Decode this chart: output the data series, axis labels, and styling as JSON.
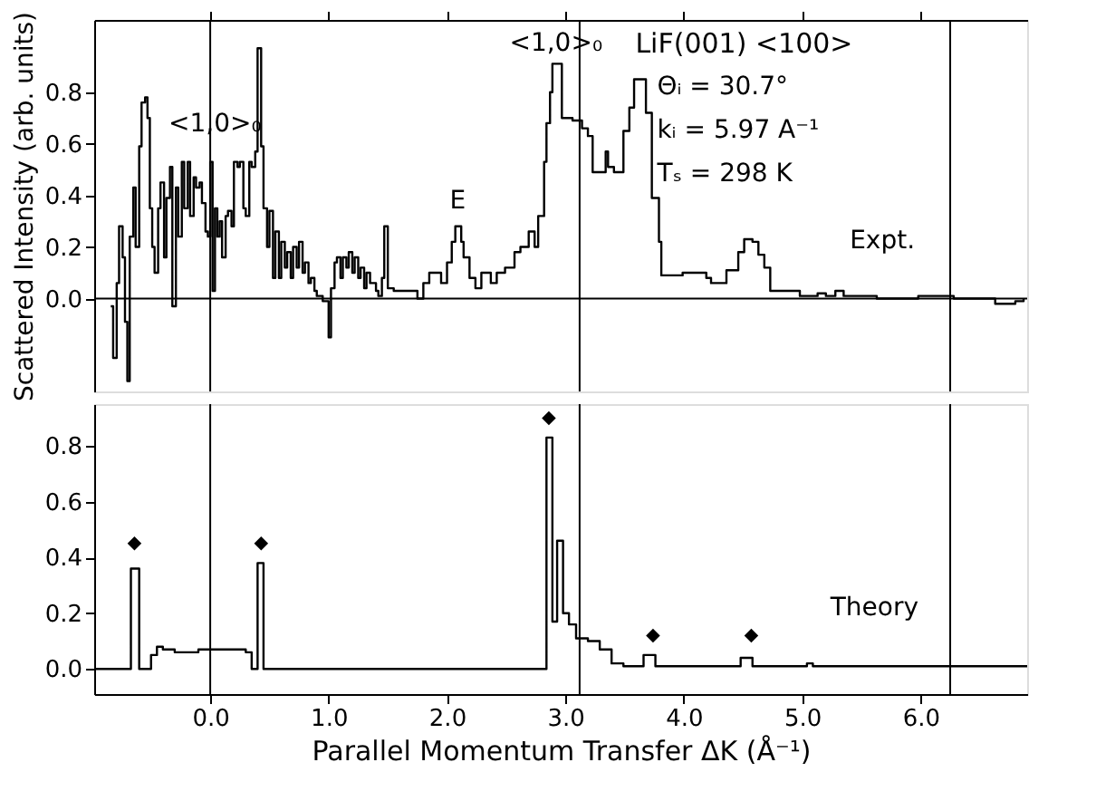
{
  "chart_data": [
    {
      "type": "step",
      "ylabel": "Scattered Intensity (arb. units)",
      "xlim": [
        -0.98,
        6.9
      ],
      "ylim": [
        -0.36,
        1.08
      ],
      "tick_labels": "y",
      "grid": false,
      "xticks": [
        {
          "value": 0,
          "label": null
        },
        {
          "value": 1,
          "label": null
        },
        {
          "value": 2,
          "label": null
        },
        {
          "value": 3,
          "label": null
        },
        {
          "value": 4,
          "label": null
        },
        {
          "value": 5,
          "label": null
        },
        {
          "value": 6,
          "label": null
        }
      ],
      "yticks": [
        {
          "value": 0,
          "label": "0.0"
        },
        {
          "value": 0.2,
          "label": "0.2"
        },
        {
          "value": 0.4,
          "label": "0.4"
        },
        {
          "value": 0.6,
          "label": "0.6"
        },
        {
          "value": 0.8,
          "label": "0.8"
        }
      ],
      "ref_lines": [
        {
          "axis": "x",
          "value": 0
        },
        {
          "axis": "x",
          "value": 3.12
        },
        {
          "axis": "x",
          "value": 6.25
        },
        {
          "axis": "y",
          "value": 0
        }
      ],
      "annotations": [
        {
          "text": "<1,0>₀",
          "x": 0.04,
          "y": 0.6
        },
        {
          "text": "<1,0>₀",
          "x": 2.92,
          "y": 0.91
        },
        {
          "text": "E",
          "x": 2.09,
          "y": 0.3
        },
        "LiF(001)  <100>",
        "Θᵢ = 30.7°",
        "kᵢ = 5.97 A⁻¹",
        "Tₛ = 298 K"
      ],
      "series": [
        {
          "name": "Expt.",
          "color": "#000000",
          "x": [
            -0.84,
            -0.82,
            -0.79,
            -0.77,
            -0.74,
            -0.72,
            -0.7,
            -0.68,
            -0.65,
            -0.63,
            -0.6,
            -0.58,
            -0.55,
            -0.53,
            -0.51,
            -0.49,
            -0.47,
            -0.44,
            -0.42,
            -0.39,
            -0.37,
            -0.34,
            -0.32,
            -0.29,
            -0.27,
            -0.24,
            -0.22,
            -0.19,
            -0.17,
            -0.14,
            -0.12,
            -0.09,
            -0.07,
            -0.04,
            -0.02,
            0.0,
            0.02,
            0.04,
            0.06,
            0.08,
            0.1,
            0.13,
            0.15,
            0.18,
            0.2,
            0.23,
            0.25,
            0.28,
            0.3,
            0.33,
            0.35,
            0.38,
            0.4,
            0.43,
            0.45,
            0.48,
            0.5,
            0.53,
            0.55,
            0.58,
            0.6,
            0.63,
            0.65,
            0.68,
            0.7,
            0.73,
            0.75,
            0.78,
            0.8,
            0.83,
            0.85,
            0.88,
            0.9,
            0.95,
            1.0,
            1.02,
            1.05,
            1.07,
            1.1,
            1.12,
            1.15,
            1.17,
            1.2,
            1.22,
            1.25,
            1.27,
            1.3,
            1.32,
            1.35,
            1.4,
            1.42,
            1.45,
            1.47,
            1.5,
            1.55,
            1.65,
            1.75,
            1.8,
            1.85,
            1.95,
            2.0,
            2.04,
            2.07,
            2.09,
            2.12,
            2.14,
            2.19,
            2.24,
            2.29,
            2.37,
            2.42,
            2.49,
            2.57,
            2.62,
            2.69,
            2.74,
            2.77,
            2.82,
            2.84,
            2.87,
            2.89,
            2.95,
            2.97,
            3.06,
            3.14,
            3.19,
            3.23,
            3.32,
            3.34,
            3.36,
            3.41,
            3.49,
            3.54,
            3.58,
            3.65,
            3.68,
            3.73,
            3.79,
            3.81,
            3.99,
            4.19,
            4.23,
            4.36,
            4.46,
            4.51,
            4.58,
            4.63,
            4.68,
            4.73,
            4.91,
            4.98,
            5.13,
            5.2,
            5.28,
            5.35,
            5.63,
            5.98,
            6.28,
            6.63,
            6.73,
            6.8,
            6.87
          ],
          "values": [
            -0.03,
            -0.23,
            0.06,
            0.28,
            0.16,
            -0.09,
            -0.32,
            0.24,
            0.43,
            0.2,
            0.59,
            0.76,
            0.78,
            0.7,
            0.35,
            0.2,
            0.1,
            0.35,
            0.45,
            0.16,
            0.39,
            0.51,
            -0.03,
            0.43,
            0.24,
            0.53,
            0.35,
            0.53,
            0.32,
            0.47,
            0.43,
            0.45,
            0.37,
            0.26,
            0.24,
            0.53,
            0.03,
            0.35,
            0.24,
            0.3,
            0.16,
            0.32,
            0.34,
            0.28,
            0.53,
            0.51,
            0.53,
            0.35,
            0.32,
            0.53,
            0.51,
            0.57,
            0.97,
            0.59,
            0.35,
            0.2,
            0.34,
            0.08,
            0.26,
            0.08,
            0.22,
            0.12,
            0.18,
            0.08,
            0.2,
            0.12,
            0.22,
            0.1,
            0.14,
            0.06,
            0.08,
            0.03,
            0.01,
            -0.01,
            -0.15,
            0.04,
            0.14,
            0.16,
            0.08,
            0.16,
            0.12,
            0.18,
            0.1,
            0.16,
            0.08,
            0.12,
            0.04,
            0.1,
            0.06,
            0.03,
            0.01,
            0.08,
            0.28,
            0.04,
            0.03,
            0.03,
            0.0,
            0.06,
            0.1,
            0.06,
            0.14,
            0.22,
            0.28,
            0.28,
            0.22,
            0.16,
            0.08,
            0.04,
            0.1,
            0.06,
            0.1,
            0.12,
            0.18,
            0.2,
            0.26,
            0.2,
            0.32,
            0.53,
            0.68,
            0.8,
            0.91,
            0.91,
            0.7,
            0.69,
            0.66,
            0.63,
            0.49,
            0.49,
            0.57,
            0.51,
            0.49,
            0.65,
            0.74,
            0.85,
            0.85,
            0.72,
            0.39,
            0.22,
            0.09,
            0.1,
            0.08,
            0.06,
            0.11,
            0.18,
            0.23,
            0.22,
            0.17,
            0.12,
            0.03,
            0.03,
            0.01,
            0.02,
            0.01,
            0.03,
            0.01,
            0.0,
            0.01,
            0.0,
            -0.02,
            -0.02,
            -0.01,
            0.0
          ]
        }
      ]
    },
    {
      "type": "step",
      "xlabel": "Parallel Momentum Transfer ΔK (Å⁻¹)",
      "xlim": [
        -0.98,
        6.9
      ],
      "ylim": [
        -0.09,
        0.95
      ],
      "grid": false,
      "xticks": [
        {
          "value": 0,
          "label": "0.0"
        },
        {
          "value": 1,
          "label": "1.0"
        },
        {
          "value": 2,
          "label": "2.0"
        },
        {
          "value": 3,
          "label": "3.0"
        },
        {
          "value": 4,
          "label": "4.0"
        },
        {
          "value": 5,
          "label": "5.0"
        },
        {
          "value": 6,
          "label": "6.0"
        }
      ],
      "yticks": [
        {
          "value": 0,
          "label": "0.0"
        },
        {
          "value": 0.2,
          "label": "0.2"
        },
        {
          "value": 0.4,
          "label": "0.4"
        },
        {
          "value": 0.6,
          "label": "0.6"
        },
        {
          "value": 0.8,
          "label": "0.8"
        }
      ],
      "ref_lines": [
        {
          "axis": "x",
          "value": 0
        },
        {
          "axis": "x",
          "value": 3.12
        },
        {
          "axis": "x",
          "value": 6.25
        }
      ],
      "series": [
        {
          "name": "Theory",
          "color": "#000000",
          "x": [
            -0.98,
            -0.67,
            -0.6,
            -0.52,
            -0.5,
            -0.45,
            -0.4,
            -0.3,
            -0.1,
            0.1,
            0.3,
            0.35,
            0.4,
            0.45,
            2.84,
            2.89,
            2.93,
            2.98,
            3.03,
            3.09,
            3.19,
            3.29,
            3.39,
            3.49,
            3.66,
            3.76,
            4.48,
            4.58,
            5.04,
            5.09,
            6.9
          ],
          "values": [
            0,
            0.36,
            0,
            0,
            0.05,
            0.08,
            0.07,
            0.06,
            0.07,
            0.07,
            0.06,
            0,
            0.38,
            0,
            0.83,
            0.17,
            0.46,
            0.2,
            0.16,
            0.11,
            0.1,
            0.07,
            0.02,
            0.01,
            0.05,
            0.01,
            0.04,
            0.01,
            0.02,
            0.01,
            0.01
          ]
        },
        {
          "type": "scatter",
          "marker": "diamond",
          "color": "#000000",
          "x": [
            -0.64,
            0.43,
            2.86,
            3.74,
            4.57
          ],
          "values": [
            0.45,
            0.45,
            0.9,
            0.12,
            0.12
          ]
        }
      ]
    }
  ]
}
